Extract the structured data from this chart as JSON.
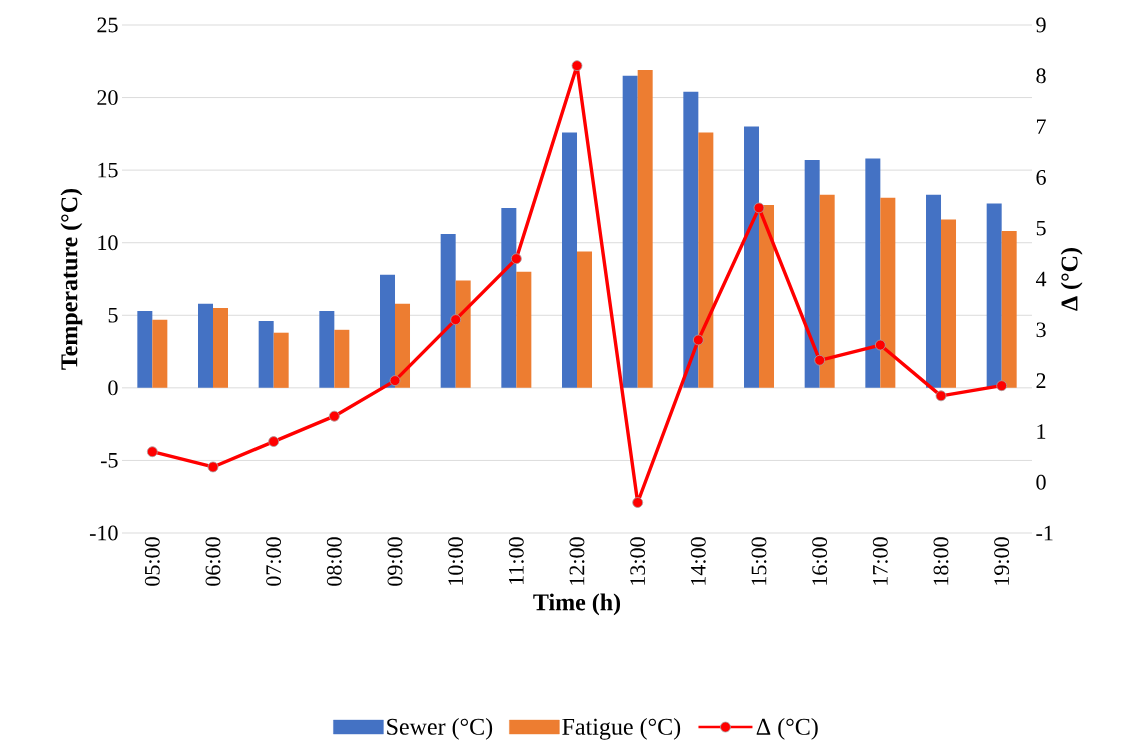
{
  "chart_data": {
    "type": "bar",
    "xlabel": "Time (h)",
    "ylabel": "Temperature (°C)",
    "y2label": "Δ (°C)",
    "categories": [
      "05:00",
      "06:00",
      "07:00",
      "08:00",
      "09:00",
      "10:00",
      "11:00",
      "12:00",
      "13:00",
      "14:00",
      "15:00",
      "16:00",
      "17:00",
      "18:00",
      "19:00"
    ],
    "series": [
      {
        "name": "Sewer (°C)",
        "color": "#4472c4",
        "values": [
          5.3,
          5.8,
          4.6,
          5.3,
          7.8,
          10.6,
          12.4,
          17.6,
          21.5,
          20.4,
          18.0,
          15.7,
          15.8,
          13.3,
          12.7
        ]
      },
      {
        "name": "Fatigue (°C)",
        "color": "#ed7d31",
        "values": [
          4.7,
          5.5,
          3.8,
          4.0,
          5.8,
          7.4,
          8.0,
          9.4,
          21.9,
          17.6,
          12.6,
          13.3,
          13.1,
          11.6,
          10.8
        ]
      },
      {
        "name": "Δ (°C)",
        "type": "line",
        "axis": "y2",
        "color": "#ff0000",
        "values": [
          0.6,
          0.3,
          0.8,
          1.3,
          2.0,
          3.2,
          4.4,
          8.2,
          -0.4,
          2.8,
          5.4,
          2.4,
          2.7,
          1.7,
          1.9
        ]
      }
    ],
    "ylim": [
      -10,
      25
    ],
    "yticks": [
      -10,
      -5,
      0,
      5,
      10,
      15,
      20,
      25
    ],
    "y2lim": [
      -1,
      9
    ],
    "y2ticks": [
      -1,
      0,
      1,
      2,
      3,
      4,
      5,
      6,
      7,
      8,
      9
    ],
    "grid": "y",
    "legend": "bottom",
    "marker": "circle",
    "line_style": "solid"
  }
}
